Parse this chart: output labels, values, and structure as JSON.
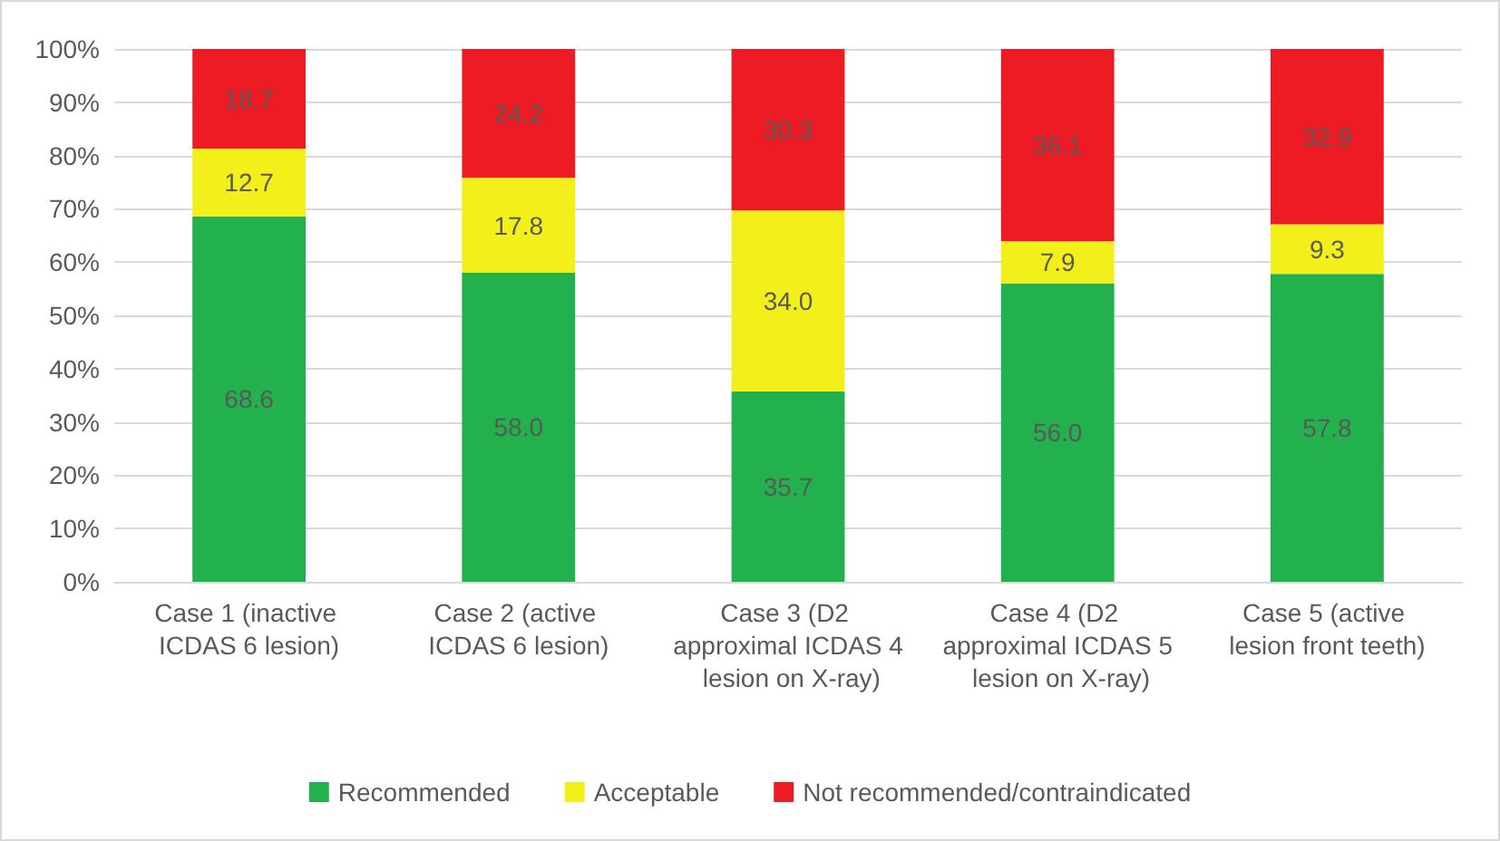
{
  "chart_data": {
    "type": "bar",
    "stacked": true,
    "categories": [
      "Case 1 (inactive ICDAS 6 lesion)",
      "Case 2 (active ICDAS 6 lesion)",
      "Case 3 (D2 approximal ICDAS 4 lesion on X-ray)",
      "Case 4 (D2 approximal ICDAS 5 lesion on X-ray)",
      "Case 5 (active lesion front teeth)"
    ],
    "series": [
      {
        "name": "Recommended",
        "color": "#22b14c",
        "values": [
          68.6,
          58.0,
          35.7,
          56.0,
          57.8
        ],
        "value_labels": [
          "68.6",
          "58.0",
          "35.7",
          "56.0",
          "57.8"
        ]
      },
      {
        "name": "Acceptable",
        "color": "#f2ef1b",
        "values": [
          12.7,
          17.8,
          34.0,
          7.9,
          9.3
        ],
        "value_labels": [
          "12.7",
          "17.8",
          "34.0",
          "7.9",
          "9.3"
        ]
      },
      {
        "name": "Not recommended/contraindicated",
        "color": "#ed1c24",
        "values": [
          18.7,
          24.2,
          30.3,
          36.1,
          32.9
        ],
        "value_labels": [
          "18.7",
          "24.2",
          "30.3",
          "36.1",
          "32.9"
        ]
      }
    ],
    "ylim": [
      0,
      100
    ],
    "yticks": [
      {
        "value": 0,
        "label": "0%"
      },
      {
        "value": 10,
        "label": "10%"
      },
      {
        "value": 20,
        "label": "20%"
      },
      {
        "value": 30,
        "label": "30%"
      },
      {
        "value": 40,
        "label": "40%"
      },
      {
        "value": 50,
        "label": "50%"
      },
      {
        "value": 60,
        "label": "60%"
      },
      {
        "value": 70,
        "label": "70%"
      },
      {
        "value": 80,
        "label": "80%"
      },
      {
        "value": 90,
        "label": "90%"
      },
      {
        "value": 100,
        "label": "100%"
      }
    ],
    "grid": "y",
    "legend": "bottom"
  }
}
